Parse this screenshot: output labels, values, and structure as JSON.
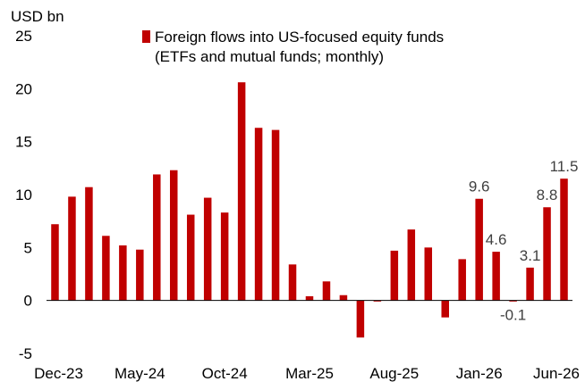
{
  "chart_data": {
    "type": "bar",
    "unit_label": "USD bn",
    "legend": {
      "placement": "top",
      "entries": [
        "Foreign flows into US-focused equity funds",
        "(ETFs and mutual funds; monthly)"
      ]
    },
    "ylim": [
      -5,
      25
    ],
    "yticks": [
      "-5",
      "0",
      "5",
      "10",
      "15",
      "20",
      "25"
    ],
    "ytick_values": [
      -5,
      0,
      5,
      10,
      15,
      20,
      25
    ],
    "grid": false,
    "x_tick_labels": [
      "Dec-23",
      "May-24",
      "Oct-24",
      "Mar-25",
      "Aug-25",
      "Jan-26",
      "Jun-26"
    ],
    "x_tick_indices": [
      0,
      5,
      10,
      15,
      20,
      25,
      30
    ],
    "categories": [
      "Dec-23",
      "Jan-24",
      "Feb-24",
      "Mar-24",
      "Apr-24",
      "May-24",
      "Jun-24",
      "Jul-24",
      "Aug-24",
      "Sep-24",
      "Oct-24",
      "Nov-24",
      "Dec-24",
      "Jan-25",
      "Feb-25",
      "Mar-25",
      "Apr-25",
      "May-25",
      "Jun-25",
      "Jul-25",
      "Aug-25",
      "Sep-25",
      "Oct-25",
      "Nov-25",
      "Dec-25",
      "Jan-26",
      "Feb-26",
      "Mar-26",
      "Apr-26",
      "May-26",
      "Jun-26"
    ],
    "values": [
      7.2,
      9.8,
      10.7,
      6.1,
      5.2,
      4.8,
      11.9,
      12.3,
      8.1,
      9.7,
      8.3,
      20.6,
      16.3,
      16.1,
      3.4,
      0.4,
      1.8,
      0.5,
      -3.5,
      -0.1,
      4.7,
      6.7,
      5.0,
      -1.6,
      3.9,
      9.6,
      4.6,
      -0.1,
      3.1,
      8.8,
      11.5
    ],
    "data_labels": [
      {
        "index": 25,
        "text": "9.6"
      },
      {
        "index": 26,
        "text": "4.6"
      },
      {
        "index": 27,
        "text": "-0.1"
      },
      {
        "index": 28,
        "text": "3.1"
      },
      {
        "index": 29,
        "text": "8.8"
      },
      {
        "index": 30,
        "text": "11.5"
      }
    ],
    "colors": {
      "bar": "#c00000",
      "axis": "#000000",
      "label": "#404040"
    }
  }
}
